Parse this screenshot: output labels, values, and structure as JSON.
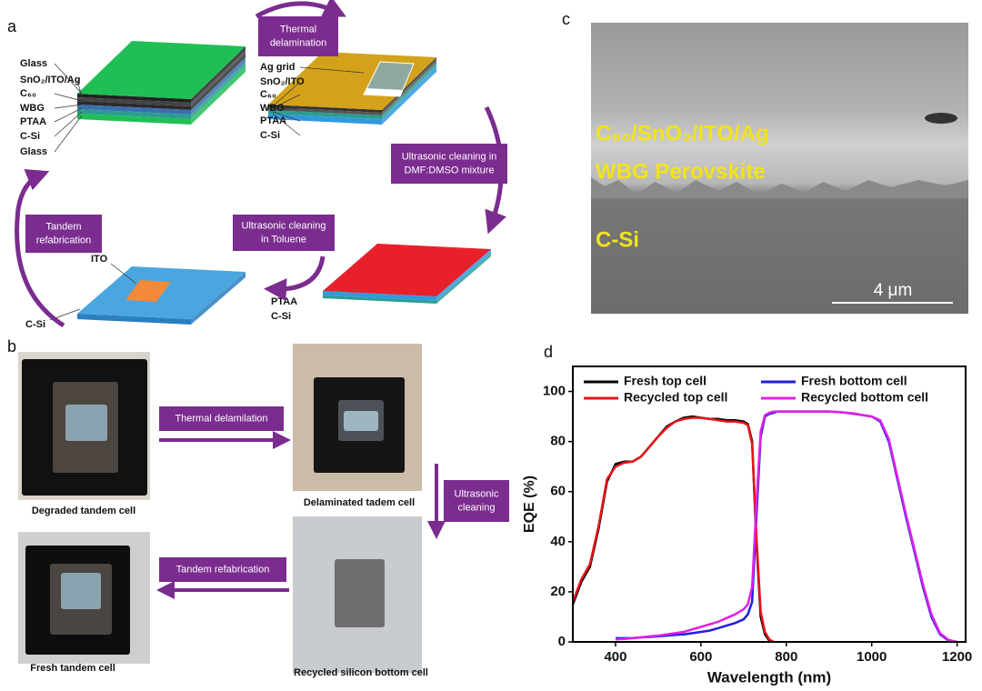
{
  "panel_a": {
    "label": "a",
    "stack1_layers": [
      "Glass",
      "SnO₂/ITO/Ag",
      "C₆₀",
      "WBG",
      "PTAA",
      "C-Si",
      "Glass"
    ],
    "stack2_layers": [
      "Ag grid",
      "SnO₂/ITO",
      "C₆₀",
      "WBG",
      "PTAA",
      "C-Si"
    ],
    "stack3_layers": [
      "PTAA",
      "C-Si"
    ],
    "stack4_layers": [
      "ITO",
      "C-Si"
    ],
    "steps": {
      "thermal": [
        "Thermal",
        "delamination"
      ],
      "ultrasonic_dmf": [
        "Ultrasonic cleaning in",
        "DMF:DMSO mixture"
      ],
      "ultrasonic_toluene": [
        "Ultrasonic cleaning",
        "in Toluene"
      ],
      "refabrication": [
        "Tandem",
        "refabrication"
      ]
    }
  },
  "panel_b": {
    "label": "b",
    "captions": [
      "Degraded tandem cell",
      "Delaminated tadem cell",
      "Recycled silicon bottom cell",
      "Fresh tandem cell"
    ],
    "steps": {
      "thermal": [
        "Thermal delamilation"
      ],
      "ultrasonic": [
        "Ultrasonic",
        "cleaning"
      ],
      "refabrication": [
        "Tandem refabrication"
      ]
    }
  },
  "panel_c": {
    "label": "c",
    "layers": [
      "C₆₀/SnO₂/ITO/Ag",
      "WBG Perovskite",
      "C-Si"
    ],
    "scale_bar": "4 μm"
  },
  "chart_data": {
    "type": "line",
    "panel_label": "d",
    "x_label": "Wavelength (nm)",
    "y_label": "EQE (%)",
    "xlim": [
      300,
      1220
    ],
    "ylim": [
      0,
      110
    ],
    "xticks": [
      400,
      600,
      800,
      1000,
      1200
    ],
    "yticks": [
      0,
      20,
      40,
      60,
      80,
      100
    ],
    "x": [
      300,
      320,
      340,
      360,
      380,
      400,
      420,
      440,
      460,
      480,
      500,
      520,
      540,
      560,
      580,
      600,
      620,
      640,
      660,
      680,
      700,
      710,
      720,
      730,
      740,
      750,
      760,
      770,
      780,
      800,
      820,
      840,
      860,
      880,
      900,
      920,
      940,
      960,
      980,
      1000,
      1020,
      1040,
      1060,
      1080,
      1100,
      1120,
      1140,
      1160,
      1180,
      1200
    ],
    "series": [
      {
        "name": "Fresh top cell",
        "color": "#000000",
        "values": [
          15,
          24,
          30,
          45,
          64,
          71,
          72,
          72,
          74,
          78,
          82,
          86,
          88,
          89.5,
          90,
          89.5,
          89,
          89,
          88.5,
          88.5,
          88,
          87,
          80,
          40,
          10,
          3,
          0.5,
          0,
          null,
          null,
          null,
          null,
          null,
          null,
          null,
          null,
          null,
          null,
          null,
          null,
          null,
          null,
          null,
          null,
          null,
          null,
          null,
          null,
          null,
          null
        ]
      },
      {
        "name": "Fresh bottom cell",
        "color": "#1f1fe0",
        "values": [
          null,
          null,
          null,
          null,
          null,
          1.5,
          1.5,
          1.5,
          1.8,
          2,
          2.2,
          2.5,
          2.8,
          3,
          3.5,
          4,
          4.5,
          5.5,
          6.5,
          7.5,
          9,
          11,
          16,
          50,
          82,
          90,
          91,
          91.5,
          92,
          92,
          92,
          92,
          92,
          92,
          92,
          91.8,
          91.5,
          91,
          90.5,
          90,
          88,
          80,
          65,
          50,
          36,
          22,
          10,
          3,
          0.5,
          0
        ]
      },
      {
        "name": "Recycled top cell",
        "color": "#e8141b",
        "values": [
          16,
          25,
          31,
          46,
          65,
          70,
          71.5,
          72,
          74,
          78,
          82,
          85.5,
          88,
          89,
          89.5,
          89.5,
          89,
          88.5,
          88,
          88,
          87.5,
          86.5,
          79,
          42,
          12,
          4,
          1,
          0,
          null,
          null,
          null,
          null,
          null,
          null,
          null,
          null,
          null,
          null,
          null,
          null,
          null,
          null,
          null,
          null,
          null,
          null,
          null,
          null,
          null,
          null
        ]
      },
      {
        "name": "Recycled bottom cell",
        "color": "#e020e8",
        "values": [
          null,
          null,
          null,
          null,
          null,
          1,
          1.2,
          1.5,
          1.8,
          2.2,
          2.5,
          3,
          3.5,
          4,
          5,
          6,
          7,
          8,
          9.5,
          11,
          13,
          15,
          22,
          55,
          84,
          90.5,
          91.5,
          92,
          92,
          92,
          92,
          92,
          92,
          92,
          92,
          91.8,
          91.5,
          91.2,
          90.5,
          90,
          88.5,
          81,
          66,
          51,
          37,
          23,
          11,
          3.5,
          0.8,
          0
        ]
      }
    ]
  }
}
